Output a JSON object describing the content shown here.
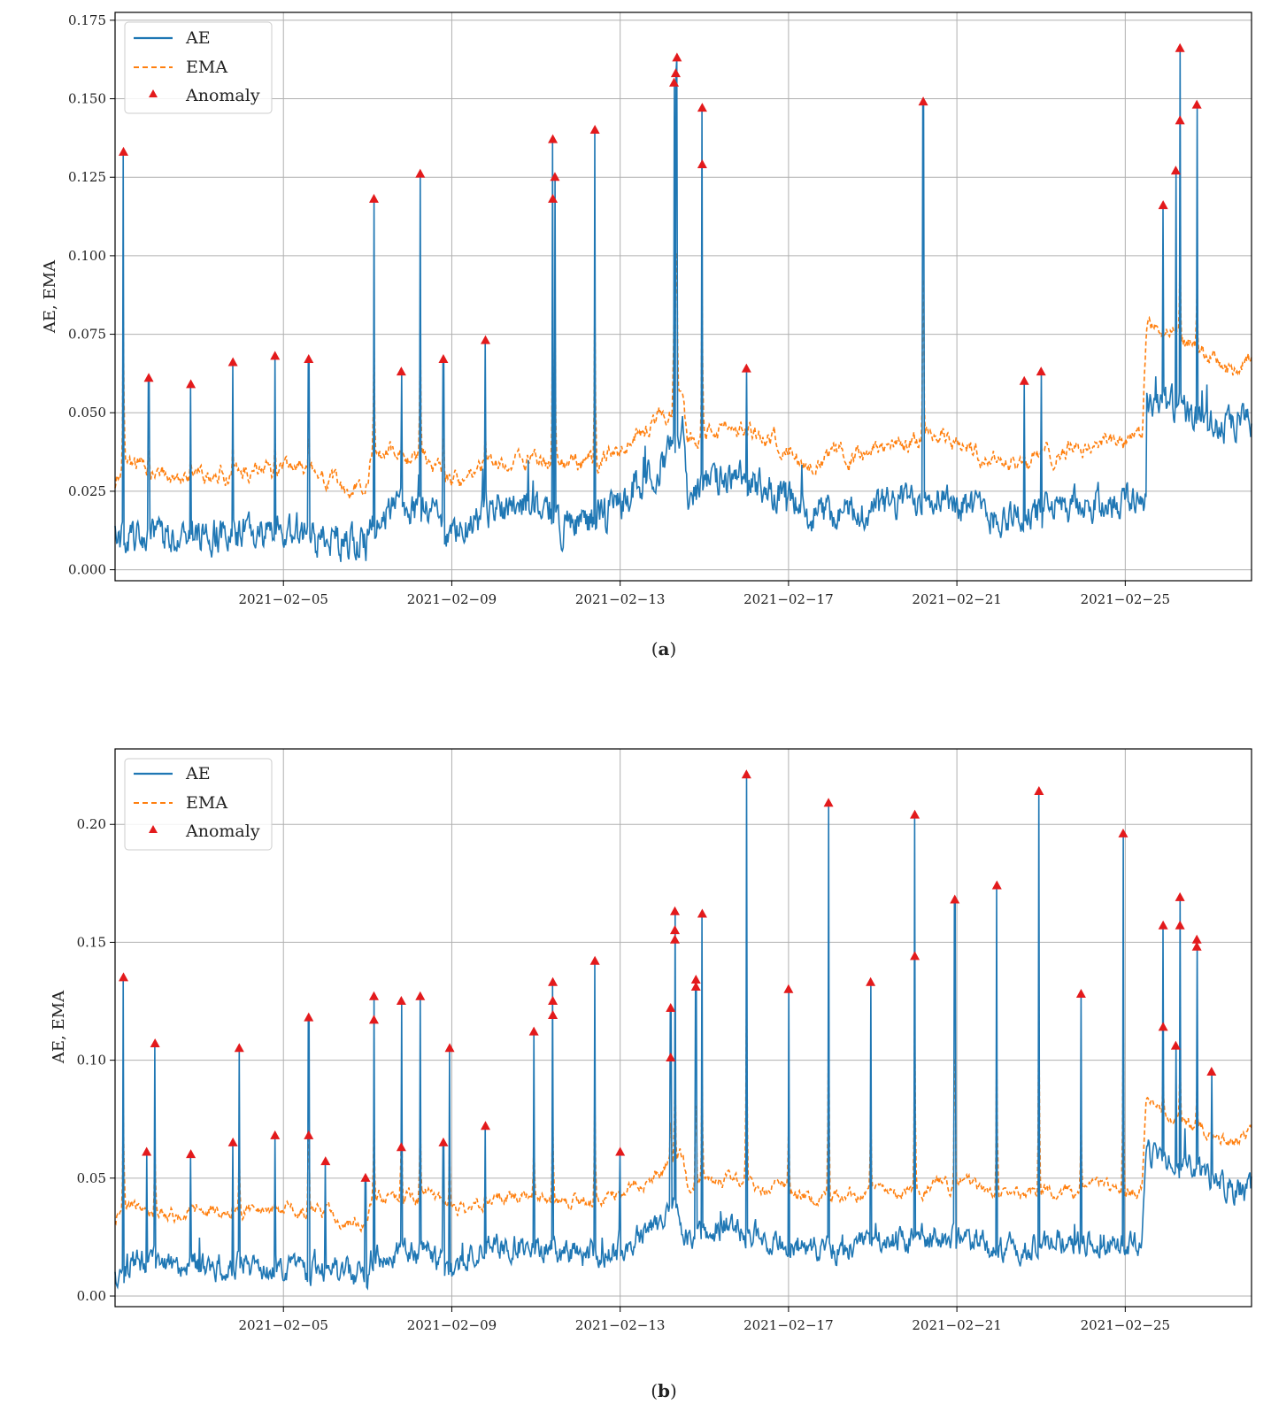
{
  "chart_data": [
    {
      "type": "line",
      "panel": "a",
      "caption_open": "(",
      "caption_letter": "a",
      "caption_close": ")",
      "xlabel": "",
      "ylabel": "AE, EMA",
      "x_start": 0.0,
      "x_end": 27.0,
      "ylim": [
        -0.0035,
        0.1775
      ],
      "yticks": [
        0.0,
        0.025,
        0.05,
        0.075,
        0.1,
        0.125,
        0.15,
        0.175
      ],
      "ytick_labels": [
        "0.000",
        "0.025",
        "0.050",
        "0.075",
        "0.100",
        "0.125",
        "0.150",
        "0.175"
      ],
      "xticks": [
        4,
        8,
        12,
        16,
        20,
        24
      ],
      "xtick_labels": [
        "2021−02−05",
        "2021−02−09",
        "2021−02−13",
        "2021−02−17",
        "2021−02−21",
        "2021−02−25"
      ],
      "grid": true,
      "legend": {
        "position": "top-left",
        "entries": [
          "AE",
          "EMA",
          "Anomaly"
        ]
      },
      "colors": {
        "ae": "#1f77b4",
        "ema": "#ff7f0e",
        "anomaly": "#e31a1c"
      },
      "baseline": [
        [
          0.0,
          0.01
        ],
        [
          0.5,
          0.01
        ],
        [
          1.5,
          0.011
        ],
        [
          3.0,
          0.012
        ],
        [
          4.5,
          0.011
        ],
        [
          5.5,
          0.009
        ],
        [
          6.0,
          0.008
        ],
        [
          6.1,
          0.018
        ],
        [
          7.5,
          0.02
        ],
        [
          7.8,
          0.012
        ],
        [
          8.0,
          0.01
        ],
        [
          8.5,
          0.014
        ],
        [
          9.0,
          0.02
        ],
        [
          9.5,
          0.022
        ],
        [
          10.3,
          0.02
        ],
        [
          10.6,
          0.014
        ],
        [
          11.0,
          0.015
        ],
        [
          11.5,
          0.017
        ],
        [
          12.0,
          0.021
        ],
        [
          13.0,
          0.034
        ],
        [
          13.3,
          0.04
        ],
        [
          13.5,
          0.044
        ],
        [
          13.6,
          0.025
        ],
        [
          14.5,
          0.029
        ],
        [
          15.5,
          0.026
        ],
        [
          16.0,
          0.022
        ],
        [
          16.5,
          0.018
        ],
        [
          17.5,
          0.018
        ],
        [
          18.5,
          0.021
        ],
        [
          19.5,
          0.025
        ],
        [
          20.5,
          0.019
        ],
        [
          21.0,
          0.017
        ],
        [
          21.5,
          0.017
        ],
        [
          22.5,
          0.02
        ],
        [
          23.0,
          0.021
        ],
        [
          24.5,
          0.023
        ],
        [
          24.5,
          0.055
        ],
        [
          25.5,
          0.05
        ],
        [
          26.0,
          0.045
        ],
        [
          26.5,
          0.045
        ],
        [
          27.0,
          0.048
        ]
      ],
      "ema_baseline": [
        [
          0.0,
          0.026
        ],
        [
          0.2,
          0.035
        ],
        [
          1.0,
          0.03
        ],
        [
          3.0,
          0.031
        ],
        [
          4.5,
          0.031
        ],
        [
          5.5,
          0.026
        ],
        [
          6.0,
          0.026
        ],
        [
          6.1,
          0.037
        ],
        [
          7.0,
          0.037
        ],
        [
          7.5,
          0.035
        ],
        [
          8.0,
          0.027
        ],
        [
          9.0,
          0.035
        ],
        [
          10.0,
          0.035
        ],
        [
          11.0,
          0.034
        ],
        [
          11.5,
          0.036
        ],
        [
          12.0,
          0.037
        ],
        [
          13.0,
          0.05
        ],
        [
          13.3,
          0.053
        ],
        [
          13.5,
          0.057
        ],
        [
          13.6,
          0.042
        ],
        [
          14.5,
          0.045
        ],
        [
          15.5,
          0.043
        ],
        [
          16.5,
          0.035
        ],
        [
          17.5,
          0.037
        ],
        [
          18.5,
          0.039
        ],
        [
          19.5,
          0.044
        ],
        [
          20.5,
          0.038
        ],
        [
          21.5,
          0.034
        ],
        [
          22.5,
          0.038
        ],
        [
          23.5,
          0.041
        ],
        [
          24.4,
          0.041
        ],
        [
          24.5,
          0.077
        ],
        [
          25.5,
          0.072
        ],
        [
          26.0,
          0.067
        ],
        [
          26.5,
          0.063
        ],
        [
          27.0,
          0.065
        ]
      ],
      "anomalies": [
        [
          0.2,
          0.133
        ],
        [
          0.8,
          0.061
        ],
        [
          1.8,
          0.059
        ],
        [
          2.8,
          0.066
        ],
        [
          3.8,
          0.068
        ],
        [
          4.6,
          0.067
        ],
        [
          6.15,
          0.118
        ],
        [
          6.8,
          0.063
        ],
        [
          7.25,
          0.126
        ],
        [
          7.8,
          0.067
        ],
        [
          8.8,
          0.073
        ],
        [
          10.4,
          0.137
        ],
        [
          10.45,
          0.125
        ],
        [
          10.4,
          0.118
        ],
        [
          11.4,
          0.14
        ],
        [
          13.35,
          0.163
        ],
        [
          13.32,
          0.158
        ],
        [
          13.28,
          0.155
        ],
        [
          13.95,
          0.147
        ],
        [
          13.95,
          0.129
        ],
        [
          15.0,
          0.064
        ],
        [
          19.2,
          0.149
        ],
        [
          21.6,
          0.06
        ],
        [
          22.0,
          0.063
        ],
        [
          24.9,
          0.116
        ],
        [
          25.2,
          0.127
        ],
        [
          25.3,
          0.166
        ],
        [
          25.3,
          0.143
        ],
        [
          25.7,
          0.148
        ]
      ],
      "ema_peak_ratio": 0.62
    },
    {
      "type": "line",
      "panel": "b",
      "caption_open": "(",
      "caption_letter": "b",
      "caption_close": ")",
      "xlabel": "",
      "ylabel": "AE, EMA",
      "x_start": 0.0,
      "x_end": 27.0,
      "ylim": [
        -0.0045,
        0.232
      ],
      "yticks": [
        0.0,
        0.05,
        0.1,
        0.15,
        0.2
      ],
      "ytick_labels": [
        "0.00",
        "0.05",
        "0.10",
        "0.15",
        "0.20"
      ],
      "xticks": [
        4,
        8,
        12,
        16,
        20,
        24
      ],
      "xtick_labels": [
        "2021−02−05",
        "2021−02−09",
        "2021−02−13",
        "2021−02−17",
        "2021−02−21",
        "2021−02−25"
      ],
      "grid": true,
      "legend": {
        "position": "top-left",
        "entries": [
          "AE",
          "EMA",
          "Anomaly"
        ]
      },
      "colors": {
        "ae": "#1f77b4",
        "ema": "#ff7f0e",
        "anomaly": "#e31a1c"
      },
      "baseline": [
        [
          0.0,
          0.01
        ],
        [
          0.5,
          0.015
        ],
        [
          1.5,
          0.013
        ],
        [
          3.0,
          0.013
        ],
        [
          4.5,
          0.011
        ],
        [
          5.5,
          0.01
        ],
        [
          6.0,
          0.009
        ],
        [
          6.1,
          0.017
        ],
        [
          7.5,
          0.019
        ],
        [
          8.0,
          0.01
        ],
        [
          8.5,
          0.018
        ],
        [
          9.5,
          0.022
        ],
        [
          10.5,
          0.019
        ],
        [
          11.0,
          0.016
        ],
        [
          12.0,
          0.02
        ],
        [
          13.0,
          0.031
        ],
        [
          13.3,
          0.037
        ],
        [
          13.4,
          0.03
        ],
        [
          13.6,
          0.024
        ],
        [
          14.5,
          0.03
        ],
        [
          15.5,
          0.025
        ],
        [
          16.5,
          0.02
        ],
        [
          17.5,
          0.02
        ],
        [
          18.5,
          0.023
        ],
        [
          19.5,
          0.026
        ],
        [
          20.5,
          0.022
        ],
        [
          21.5,
          0.02
        ],
        [
          22.5,
          0.023
        ],
        [
          23.5,
          0.022
        ],
        [
          24.4,
          0.022
        ],
        [
          24.5,
          0.06
        ],
        [
          25.5,
          0.055
        ],
        [
          26.0,
          0.05
        ],
        [
          26.5,
          0.046
        ],
        [
          27.0,
          0.044
        ]
      ],
      "ema_baseline": [
        [
          0.0,
          0.031
        ],
        [
          0.2,
          0.04
        ],
        [
          1.0,
          0.036
        ],
        [
          3.0,
          0.036
        ],
        [
          4.5,
          0.036
        ],
        [
          5.5,
          0.032
        ],
        [
          6.0,
          0.031
        ],
        [
          6.1,
          0.042
        ],
        [
          7.5,
          0.043
        ],
        [
          8.0,
          0.035
        ],
        [
          9.0,
          0.042
        ],
        [
          10.0,
          0.043
        ],
        [
          11.0,
          0.04
        ],
        [
          12.0,
          0.043
        ],
        [
          13.0,
          0.054
        ],
        [
          13.3,
          0.058
        ],
        [
          13.5,
          0.06
        ],
        [
          13.6,
          0.047
        ],
        [
          14.5,
          0.05
        ],
        [
          15.5,
          0.047
        ],
        [
          16.5,
          0.043
        ],
        [
          17.5,
          0.043
        ],
        [
          18.5,
          0.045
        ],
        [
          19.5,
          0.047
        ],
        [
          20.5,
          0.045
        ],
        [
          21.5,
          0.043
        ],
        [
          22.5,
          0.044
        ],
        [
          23.5,
          0.046
        ],
        [
          24.4,
          0.045
        ],
        [
          24.5,
          0.08
        ],
        [
          25.5,
          0.074
        ],
        [
          26.0,
          0.068
        ],
        [
          26.5,
          0.065
        ],
        [
          27.0,
          0.07
        ]
      ],
      "anomalies": [
        [
          0.2,
          0.135
        ],
        [
          0.75,
          0.061
        ],
        [
          0.95,
          0.107
        ],
        [
          1.8,
          0.06
        ],
        [
          2.8,
          0.065
        ],
        [
          2.95,
          0.105
        ],
        [
          3.8,
          0.068
        ],
        [
          4.6,
          0.118
        ],
        [
          4.6,
          0.068
        ],
        [
          5.0,
          0.057
        ],
        [
          5.95,
          0.05
        ],
        [
          6.15,
          0.127
        ],
        [
          6.15,
          0.117
        ],
        [
          6.8,
          0.125
        ],
        [
          6.8,
          0.063
        ],
        [
          7.25,
          0.127
        ],
        [
          7.8,
          0.065
        ],
        [
          7.95,
          0.105
        ],
        [
          8.8,
          0.072
        ],
        [
          9.95,
          0.112
        ],
        [
          10.4,
          0.133
        ],
        [
          10.4,
          0.125
        ],
        [
          10.4,
          0.119
        ],
        [
          11.4,
          0.142
        ],
        [
          12.0,
          0.061
        ],
        [
          13.2,
          0.122
        ],
        [
          13.2,
          0.101
        ],
        [
          13.3,
          0.163
        ],
        [
          13.3,
          0.155
        ],
        [
          13.3,
          0.151
        ],
        [
          13.8,
          0.134
        ],
        [
          13.8,
          0.131
        ],
        [
          13.95,
          0.162
        ],
        [
          15.0,
          0.221
        ],
        [
          16.0,
          0.13
        ],
        [
          16.95,
          0.209
        ],
        [
          17.95,
          0.133
        ],
        [
          19.0,
          0.204
        ],
        [
          19.0,
          0.144
        ],
        [
          19.95,
          0.168
        ],
        [
          20.95,
          0.174
        ],
        [
          21.95,
          0.214
        ],
        [
          22.95,
          0.128
        ],
        [
          23.95,
          0.196
        ],
        [
          24.9,
          0.157
        ],
        [
          24.9,
          0.114
        ],
        [
          25.2,
          0.106
        ],
        [
          25.3,
          0.169
        ],
        [
          25.3,
          0.157
        ],
        [
          25.7,
          0.151
        ],
        [
          25.7,
          0.148
        ],
        [
          26.05,
          0.095
        ]
      ],
      "ema_peak_ratio": 0.6
    }
  ]
}
